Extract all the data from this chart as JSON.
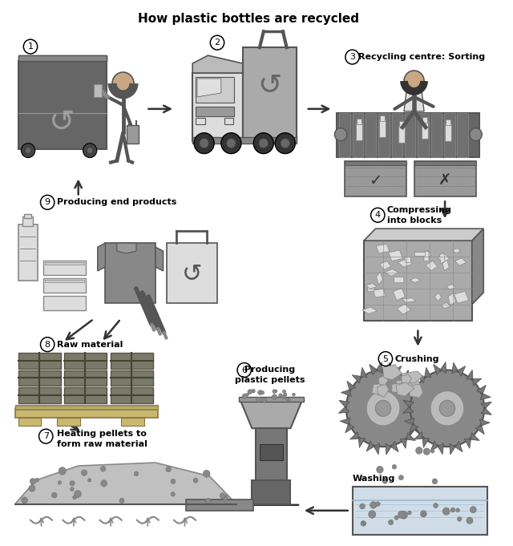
{
  "title": "How plastic bottles are recycled",
  "title_fontsize": 11,
  "title_fontweight": "bold",
  "bg_color": "#ffffff",
  "figsize": [
    6.4,
    6.81
  ],
  "dpi": 100,
  "step_labels": {
    "3": "Recycling centre: Sorting",
    "4": "Compressing\ninto blocks",
    "5": "Crushing",
    "6": "Producing\nplastic pellets",
    "7": "Heating pellets to\nform raw material",
    "8": "Raw material",
    "9": "Producing end products"
  },
  "gray_dark": "#555555",
  "gray_mid": "#888888",
  "gray_light": "#bbbbbb",
  "gray_lighter": "#dddddd",
  "gray_truck": "#999999",
  "gray_bin": "#777777",
  "gray_bale": "#7a7a6a",
  "pallet_color": "#c8b870",
  "arrow_color": "#333333",
  "label_fontsize": 8,
  "num_fontsize": 8
}
